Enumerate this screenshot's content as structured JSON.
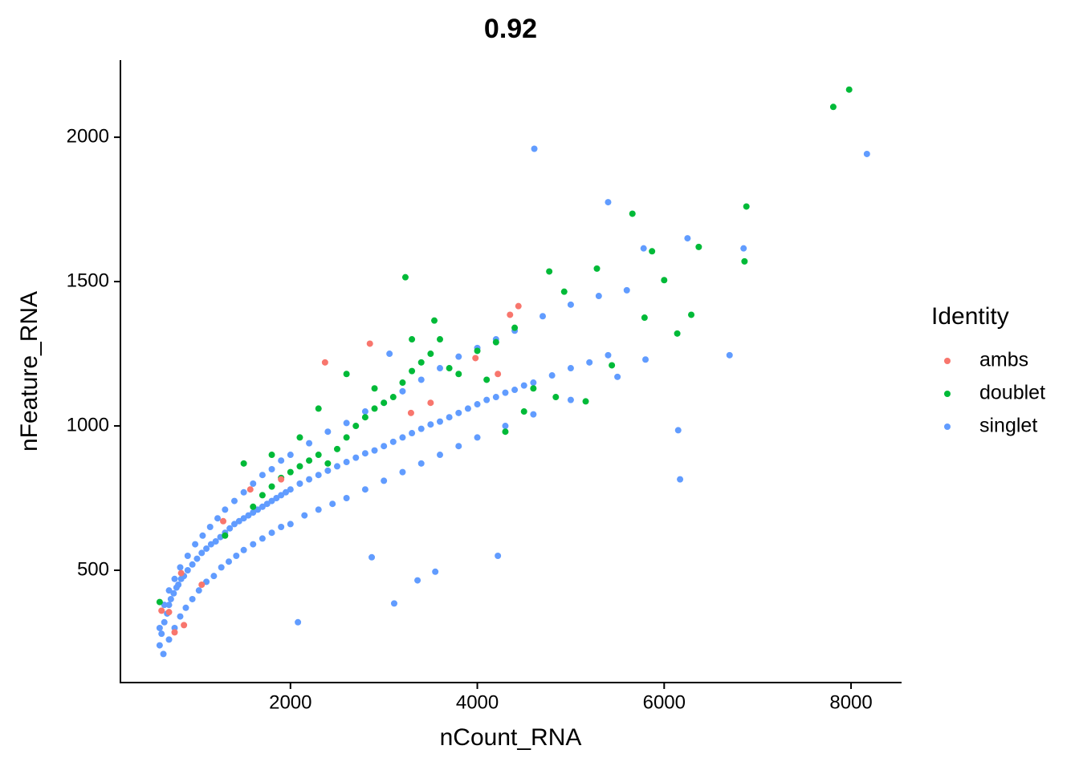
{
  "chart_data": {
    "type": "scatter",
    "title": "0.92",
    "x_label": "nCount_RNA",
    "y_label": "nFeature_RNA",
    "legend_title": "Identity",
    "legend": "right",
    "grid": false,
    "xlim": [
      180,
      8541
    ],
    "ylim": [
      111,
      2267
    ],
    "xticks": [
      2000,
      4000,
      6000,
      8000
    ],
    "yticks": [
      500,
      1000,
      1500,
      2000
    ],
    "series": [
      {
        "name": "ambs",
        "color": "#F8766D",
        "x": [
          2370,
          2850,
          4440,
          4350,
          3980,
          3290,
          1570,
          1900,
          830,
          860,
          760,
          700,
          620,
          4220,
          3500,
          1280,
          1050
        ],
        "values": [
          1220,
          1285,
          1415,
          1385,
          1235,
          1045,
          780,
          815,
          490,
          310,
          285,
          355,
          360,
          1180,
          1080,
          670,
          450
        ]
      },
      {
        "name": "doublet",
        "color": "#00BA38",
        "x": [
          7980,
          7810,
          6880,
          6860,
          5660,
          5870,
          6370,
          6000,
          6290,
          6140,
          5790,
          3230,
          4770,
          5280,
          4930,
          5440,
          5160,
          4840,
          600,
          1300,
          1600,
          1700,
          1800,
          1900,
          2000,
          2100,
          2200,
          2300,
          2400,
          2500,
          2600,
          2700,
          2800,
          2900,
          3000,
          3100,
          3200,
          3300,
          3400,
          3500,
          3600,
          3700,
          3800,
          4000,
          4200,
          4400,
          4500,
          4600,
          1500,
          1800,
          2100,
          2300,
          2600,
          2900,
          3300,
          3540,
          4100,
          4300
        ],
        "values": [
          2165,
          2105,
          1760,
          1570,
          1735,
          1605,
          1620,
          1505,
          1385,
          1320,
          1375,
          1515,
          1535,
          1545,
          1465,
          1210,
          1085,
          1100,
          390,
          620,
          720,
          760,
          790,
          820,
          840,
          860,
          880,
          900,
          870,
          920,
          960,
          1000,
          1030,
          1060,
          1080,
          1100,
          1150,
          1190,
          1220,
          1250,
          1300,
          1200,
          1180,
          1260,
          1290,
          1340,
          1050,
          1130,
          870,
          900,
          960,
          1060,
          1180,
          1130,
          1300,
          1365,
          1160,
          980
        ]
      },
      {
        "name": "singlet",
        "color": "#619CFF",
        "x": [
          4610,
          8170,
          5400,
          6250,
          6850,
          5780,
          6700,
          6150,
          6170,
          4220,
          3360,
          3110,
          2080,
          3550,
          2870,
          3060,
          600,
          620,
          650,
          680,
          700,
          720,
          750,
          780,
          800,
          830,
          860,
          900,
          950,
          1000,
          1050,
          1100,
          1150,
          1200,
          1250,
          1300,
          1350,
          1400,
          1450,
          1500,
          1550,
          1600,
          1650,
          1700,
          1750,
          1800,
          1850,
          1900,
          1950,
          2000,
          2100,
          2200,
          2300,
          2400,
          2500,
          2600,
          2700,
          2800,
          2900,
          3000,
          3100,
          3200,
          3300,
          3400,
          3500,
          3600,
          3700,
          3800,
          3900,
          4000,
          4100,
          4200,
          4300,
          4400,
          4500,
          4600,
          4800,
          5000,
          5200,
          5400,
          640,
          700,
          760,
          820,
          880,
          950,
          1020,
          1100,
          1180,
          1260,
          1340,
          1420,
          1500,
          1600,
          1700,
          1800,
          1900,
          2000,
          2150,
          2300,
          2450,
          2600,
          2800,
          3000,
          3200,
          3400,
          3600,
          3800,
          4000,
          4300,
          4600,
          5000,
          5500,
          5800,
          600,
          650,
          700,
          760,
          820,
          900,
          980,
          1060,
          1140,
          1220,
          1300,
          1400,
          1500,
          1600,
          1700,
          1800,
          1900,
          2000,
          2200,
          2400,
          2600,
          2800,
          3000,
          3200,
          3400,
          3600,
          3800,
          4000,
          4200,
          4400,
          4700,
          5000,
          5300,
          5600
        ],
        "values": [
          1960,
          1942,
          1775,
          1650,
          1615,
          1615,
          1245,
          985,
          815,
          550,
          465,
          385,
          320,
          495,
          545,
          1250,
          240,
          280,
          320,
          350,
          380,
          400,
          420,
          440,
          450,
          470,
          480,
          500,
          520,
          540,
          560,
          575,
          590,
          600,
          615,
          630,
          645,
          660,
          670,
          680,
          690,
          700,
          710,
          720,
          730,
          740,
          750,
          760,
          770,
          780,
          800,
          815,
          830,
          845,
          860,
          875,
          890,
          905,
          915,
          930,
          945,
          960,
          975,
          990,
          1005,
          1015,
          1030,
          1045,
          1060,
          1075,
          1090,
          1100,
          1115,
          1125,
          1140,
          1150,
          1175,
          1200,
          1220,
          1245,
          210,
          260,
          300,
          340,
          370,
          400,
          430,
          460,
          480,
          510,
          530,
          550,
          570,
          590,
          610,
          630,
          650,
          660,
          690,
          710,
          730,
          750,
          780,
          810,
          840,
          870,
          900,
          930,
          960,
          1000,
          1040,
          1090,
          1170,
          1230,
          300,
          380,
          430,
          470,
          510,
          550,
          590,
          620,
          650,
          680,
          710,
          740,
          770,
          800,
          830,
          850,
          880,
          900,
          940,
          980,
          1010,
          1050,
          1080,
          1120,
          1160,
          1200,
          1240,
          1270,
          1300,
          1330,
          1380,
          1420,
          1450,
          1470
        ]
      }
    ]
  }
}
